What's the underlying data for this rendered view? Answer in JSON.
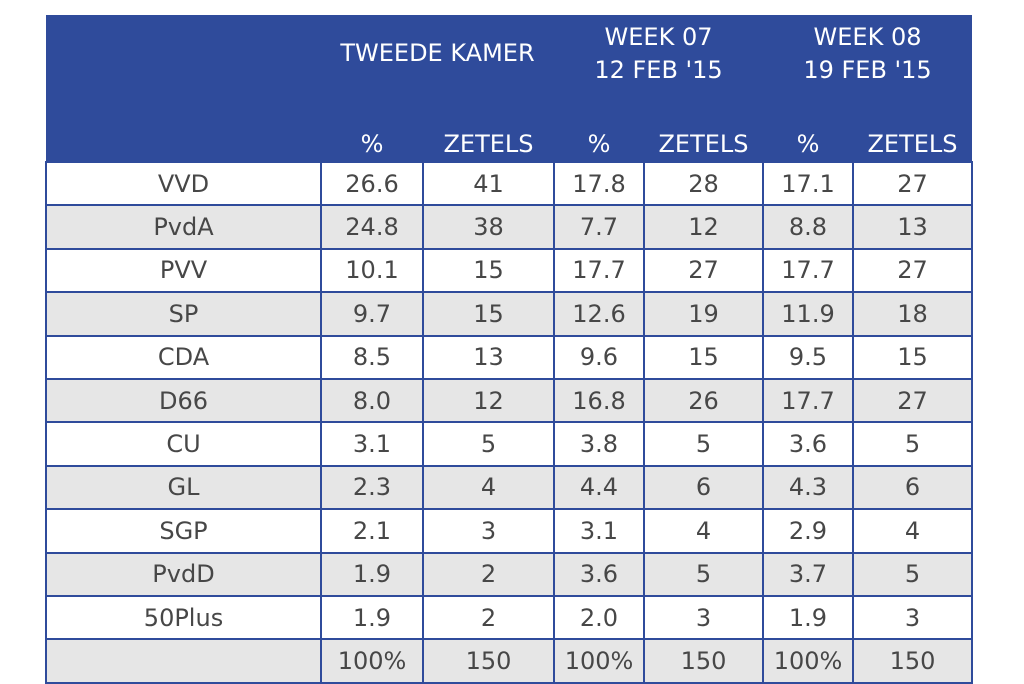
{
  "table": {
    "groups": [
      {
        "lines": [
          "TWEEDE KAMER"
        ]
      },
      {
        "lines": [
          "WEEK 07",
          "12 FEB '15"
        ]
      },
      {
        "lines": [
          "WEEK 08",
          "19 FEB '15"
        ]
      }
    ],
    "subheaders": [
      "%",
      "ZETELS",
      "%",
      "ZETELS",
      "%",
      "ZETELS"
    ],
    "rows": [
      [
        "VVD",
        "26.6",
        "41",
        "17.8",
        "28",
        "17.1",
        "27"
      ],
      [
        "PvdA",
        "24.8",
        "38",
        "7.7",
        "12",
        "8.8",
        "13"
      ],
      [
        "PVV",
        "10.1",
        "15",
        "17.7",
        "27",
        "17.7",
        "27"
      ],
      [
        "SP",
        "9.7",
        "15",
        "12.6",
        "19",
        "11.9",
        "18"
      ],
      [
        "CDA",
        "8.5",
        "13",
        "9.6",
        "15",
        "9.5",
        "15"
      ],
      [
        "D66",
        "8.0",
        "12",
        "16.8",
        "26",
        "17.7",
        "27"
      ],
      [
        "CU",
        "3.1",
        "5",
        "3.8",
        "5",
        "3.6",
        "5"
      ],
      [
        "GL",
        "2.3",
        "4",
        "4.4",
        "6",
        "4.3",
        "6"
      ],
      [
        "SGP",
        "2.1",
        "3",
        "3.1",
        "4",
        "2.9",
        "4"
      ],
      [
        "PvdD",
        "1.9",
        "2",
        "3.6",
        "5",
        "3.7",
        "5"
      ],
      [
        "50Plus",
        "1.9",
        "2",
        "2.0",
        "3",
        "1.9",
        "3"
      ]
    ],
    "totals": [
      "100%",
      "150",
      "100%",
      "150",
      "100%",
      "150"
    ]
  }
}
